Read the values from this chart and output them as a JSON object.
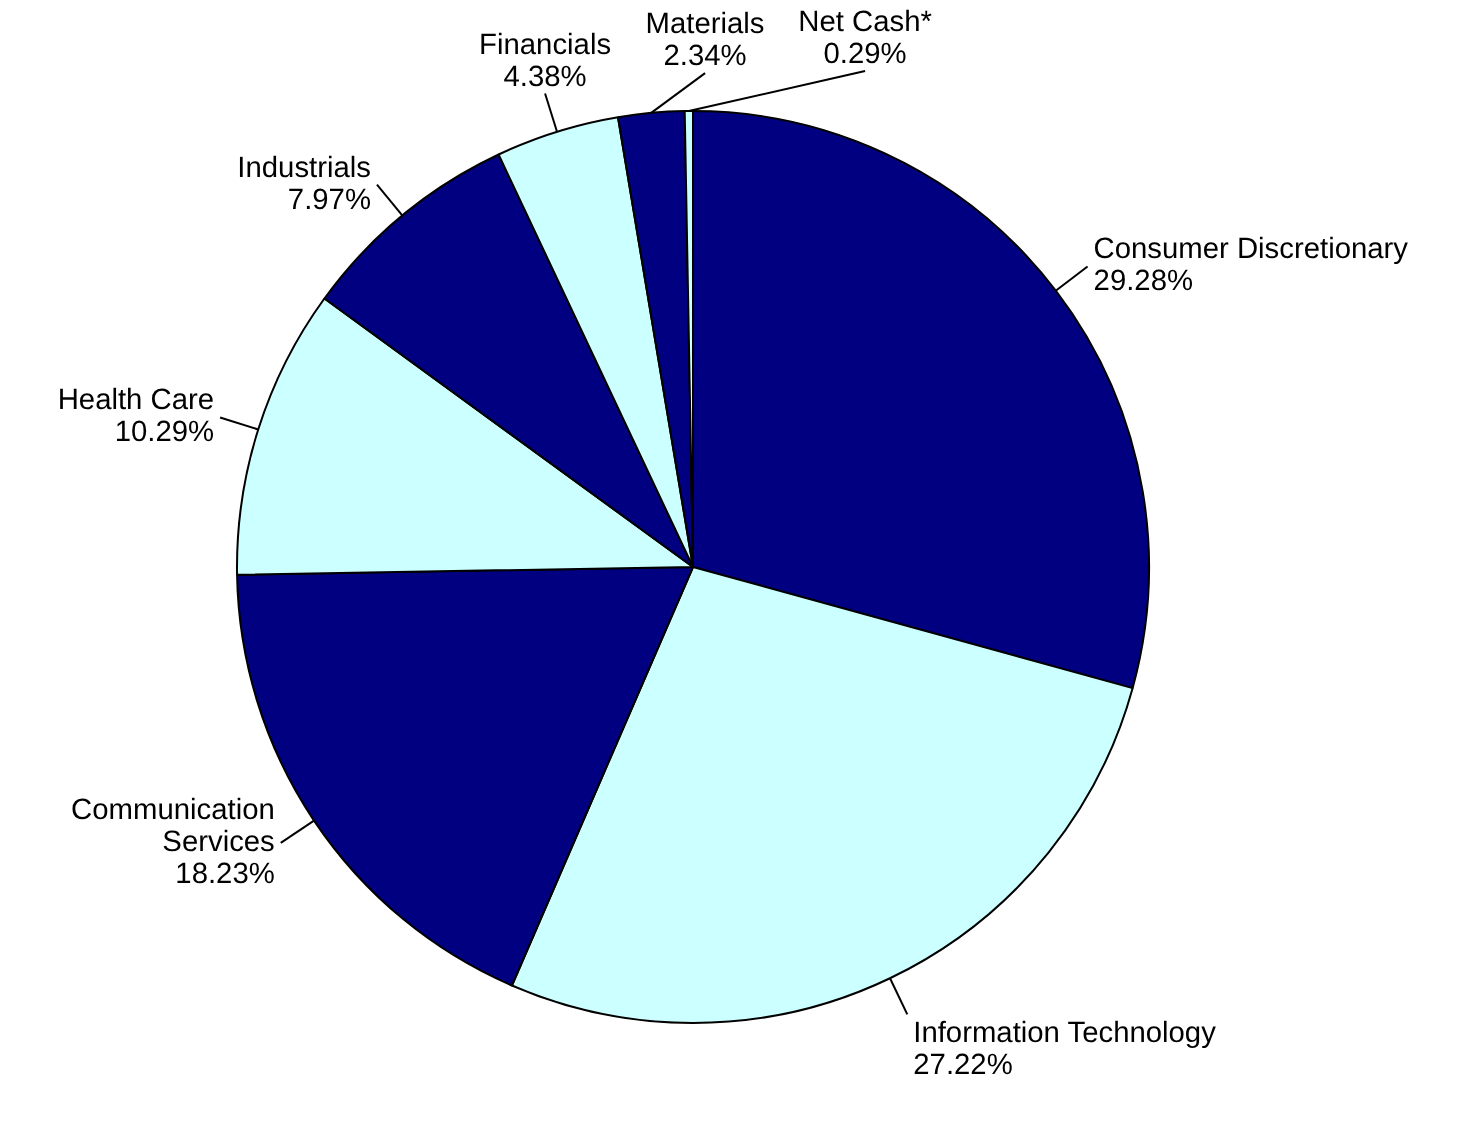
{
  "chart_data": {
    "type": "pie",
    "categories": [
      "Consumer Discretionary",
      "Information Technology",
      "Communication Services",
      "Health Care",
      "Industrials",
      "Financials",
      "Materials",
      "Net Cash*"
    ],
    "values": [
      29.28,
      27.22,
      18.23,
      10.29,
      7.97,
      4.38,
      2.34,
      0.29
    ],
    "colors": [
      "#000080",
      "#ccffff",
      "#000080",
      "#ccffff",
      "#000080",
      "#ccffff",
      "#000080",
      "#ccffff"
    ],
    "value_labels": [
      "29.28%",
      "27.22%",
      "18.23%",
      "10.29%",
      "7.97%",
      "4.38%",
      "2.34%",
      "0.29%"
    ]
  }
}
